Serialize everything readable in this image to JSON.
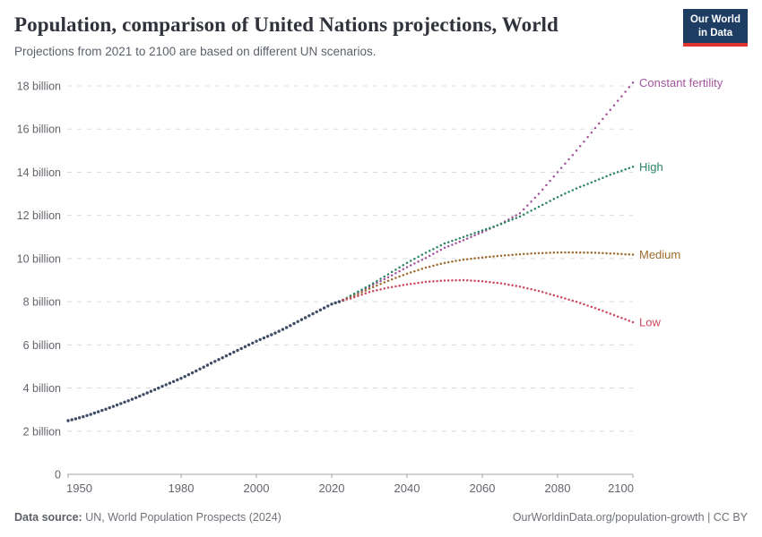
{
  "header": {
    "title": "Population, comparison of United Nations projections, World",
    "subtitle": "Projections from 2021 to 2100 are based on different UN scenarios.",
    "logo_line1": "Our World",
    "logo_line2": "in Data",
    "logo_bg_color": "#1d3d63",
    "logo_accent_color": "#e0352f"
  },
  "footer": {
    "source_label": "Data source:",
    "source_value": "UN, World Population Prospects (2024)",
    "link": "OurWorldinData.org/population-growth | CC BY"
  },
  "chart_data": {
    "type": "line",
    "title": "Population, comparison of United Nations projections, World",
    "subtitle": "Projections from 2021 to 2100 are based on different UN scenarios.",
    "unit": "billion",
    "xlim": [
      1950,
      2100
    ],
    "ylim": [
      0,
      18
    ],
    "grid": "dashed-horizontal",
    "x_ticks": [
      1950,
      1980,
      2000,
      2020,
      2040,
      2060,
      2080,
      2100
    ],
    "y_ticks": [
      {
        "value": 0,
        "label": "0"
      },
      {
        "value": 2,
        "label": "2 billion"
      },
      {
        "value": 4,
        "label": "4 billion"
      },
      {
        "value": 6,
        "label": "6 billion"
      },
      {
        "value": 8,
        "label": "8 billion"
      },
      {
        "value": 10,
        "label": "10 billion"
      },
      {
        "value": 12,
        "label": "12 billion"
      },
      {
        "value": 14,
        "label": "14 billion"
      },
      {
        "value": 16,
        "label": "16 billion"
      },
      {
        "value": 18,
        "label": "18 billion"
      }
    ],
    "legend_position": "right-end-of-line",
    "series": [
      {
        "id": "historical",
        "label": null,
        "role": "historical",
        "color": "#3f4e66",
        "points": [
          [
            1950,
            2.49
          ],
          [
            1952,
            2.57
          ],
          [
            1954,
            2.67
          ],
          [
            1956,
            2.78
          ],
          [
            1958,
            2.9
          ],
          [
            1960,
            3.02
          ],
          [
            1962,
            3.15
          ],
          [
            1964,
            3.28
          ],
          [
            1966,
            3.41
          ],
          [
            1968,
            3.55
          ],
          [
            1970,
            3.7
          ],
          [
            1972,
            3.85
          ],
          [
            1974,
            4.0
          ],
          [
            1976,
            4.15
          ],
          [
            1978,
            4.3
          ],
          [
            1980,
            4.45
          ],
          [
            1982,
            4.62
          ],
          [
            1984,
            4.79
          ],
          [
            1986,
            4.97
          ],
          [
            1988,
            5.15
          ],
          [
            1990,
            5.32
          ],
          [
            1992,
            5.49
          ],
          [
            1994,
            5.66
          ],
          [
            1996,
            5.83
          ],
          [
            1998,
            6.0
          ],
          [
            2000,
            6.17
          ],
          [
            2002,
            6.32
          ],
          [
            2004,
            6.47
          ],
          [
            2006,
            6.63
          ],
          [
            2008,
            6.8
          ],
          [
            2010,
            6.99
          ],
          [
            2012,
            7.17
          ],
          [
            2014,
            7.35
          ],
          [
            2016,
            7.53
          ],
          [
            2018,
            7.71
          ],
          [
            2020,
            7.89
          ],
          [
            2022,
            8.0
          ],
          [
            2023,
            8.07
          ]
        ]
      },
      {
        "id": "constant-fertility",
        "label": "Constant fertility",
        "role": "projection",
        "color": "#a2559c",
        "points": [
          [
            2023,
            8.07
          ],
          [
            2025,
            8.25
          ],
          [
            2030,
            8.7
          ],
          [
            2035,
            9.13
          ],
          [
            2040,
            9.6
          ],
          [
            2045,
            10.03
          ],
          [
            2050,
            10.5
          ],
          [
            2055,
            10.85
          ],
          [
            2060,
            11.22
          ],
          [
            2065,
            11.62
          ],
          [
            2070,
            12.1
          ],
          [
            2075,
            13.0
          ],
          [
            2080,
            14.0
          ],
          [
            2085,
            15.0
          ],
          [
            2090,
            16.05
          ],
          [
            2095,
            17.1
          ],
          [
            2100,
            18.15
          ]
        ]
      },
      {
        "id": "high",
        "label": "High",
        "role": "projection",
        "color": "#2c8465",
        "points": [
          [
            2023,
            8.07
          ],
          [
            2025,
            8.28
          ],
          [
            2030,
            8.75
          ],
          [
            2035,
            9.27
          ],
          [
            2040,
            9.8
          ],
          [
            2045,
            10.27
          ],
          [
            2050,
            10.7
          ],
          [
            2055,
            11.0
          ],
          [
            2060,
            11.3
          ],
          [
            2065,
            11.6
          ],
          [
            2070,
            11.95
          ],
          [
            2075,
            12.4
          ],
          [
            2080,
            12.85
          ],
          [
            2085,
            13.25
          ],
          [
            2090,
            13.6
          ],
          [
            2095,
            13.95
          ],
          [
            2100,
            14.25
          ]
        ]
      },
      {
        "id": "medium",
        "label": "Medium",
        "role": "projection",
        "color": "#9d6b2c",
        "points": [
          [
            2023,
            8.07
          ],
          [
            2025,
            8.2
          ],
          [
            2030,
            8.6
          ],
          [
            2035,
            8.97
          ],
          [
            2040,
            9.3
          ],
          [
            2045,
            9.58
          ],
          [
            2050,
            9.8
          ],
          [
            2055,
            9.95
          ],
          [
            2060,
            10.05
          ],
          [
            2065,
            10.13
          ],
          [
            2070,
            10.2
          ],
          [
            2075,
            10.25
          ],
          [
            2080,
            10.28
          ],
          [
            2085,
            10.28
          ],
          [
            2090,
            10.27
          ],
          [
            2095,
            10.23
          ],
          [
            2100,
            10.18
          ]
        ]
      },
      {
        "id": "low",
        "label": "Low",
        "role": "projection",
        "color": "#cb4960",
        "points": [
          [
            2023,
            8.07
          ],
          [
            2025,
            8.15
          ],
          [
            2030,
            8.45
          ],
          [
            2035,
            8.65
          ],
          [
            2040,
            8.8
          ],
          [
            2045,
            8.92
          ],
          [
            2050,
            8.98
          ],
          [
            2055,
            9.0
          ],
          [
            2060,
            8.95
          ],
          [
            2065,
            8.85
          ],
          [
            2070,
            8.7
          ],
          [
            2075,
            8.5
          ],
          [
            2080,
            8.25
          ],
          [
            2085,
            8.0
          ],
          [
            2090,
            7.7
          ],
          [
            2095,
            7.38
          ],
          [
            2100,
            7.05
          ]
        ]
      }
    ],
    "colors": {
      "grid": "#dadce0",
      "axis": "#a0a4a8",
      "tick_label": "#62666d"
    }
  }
}
